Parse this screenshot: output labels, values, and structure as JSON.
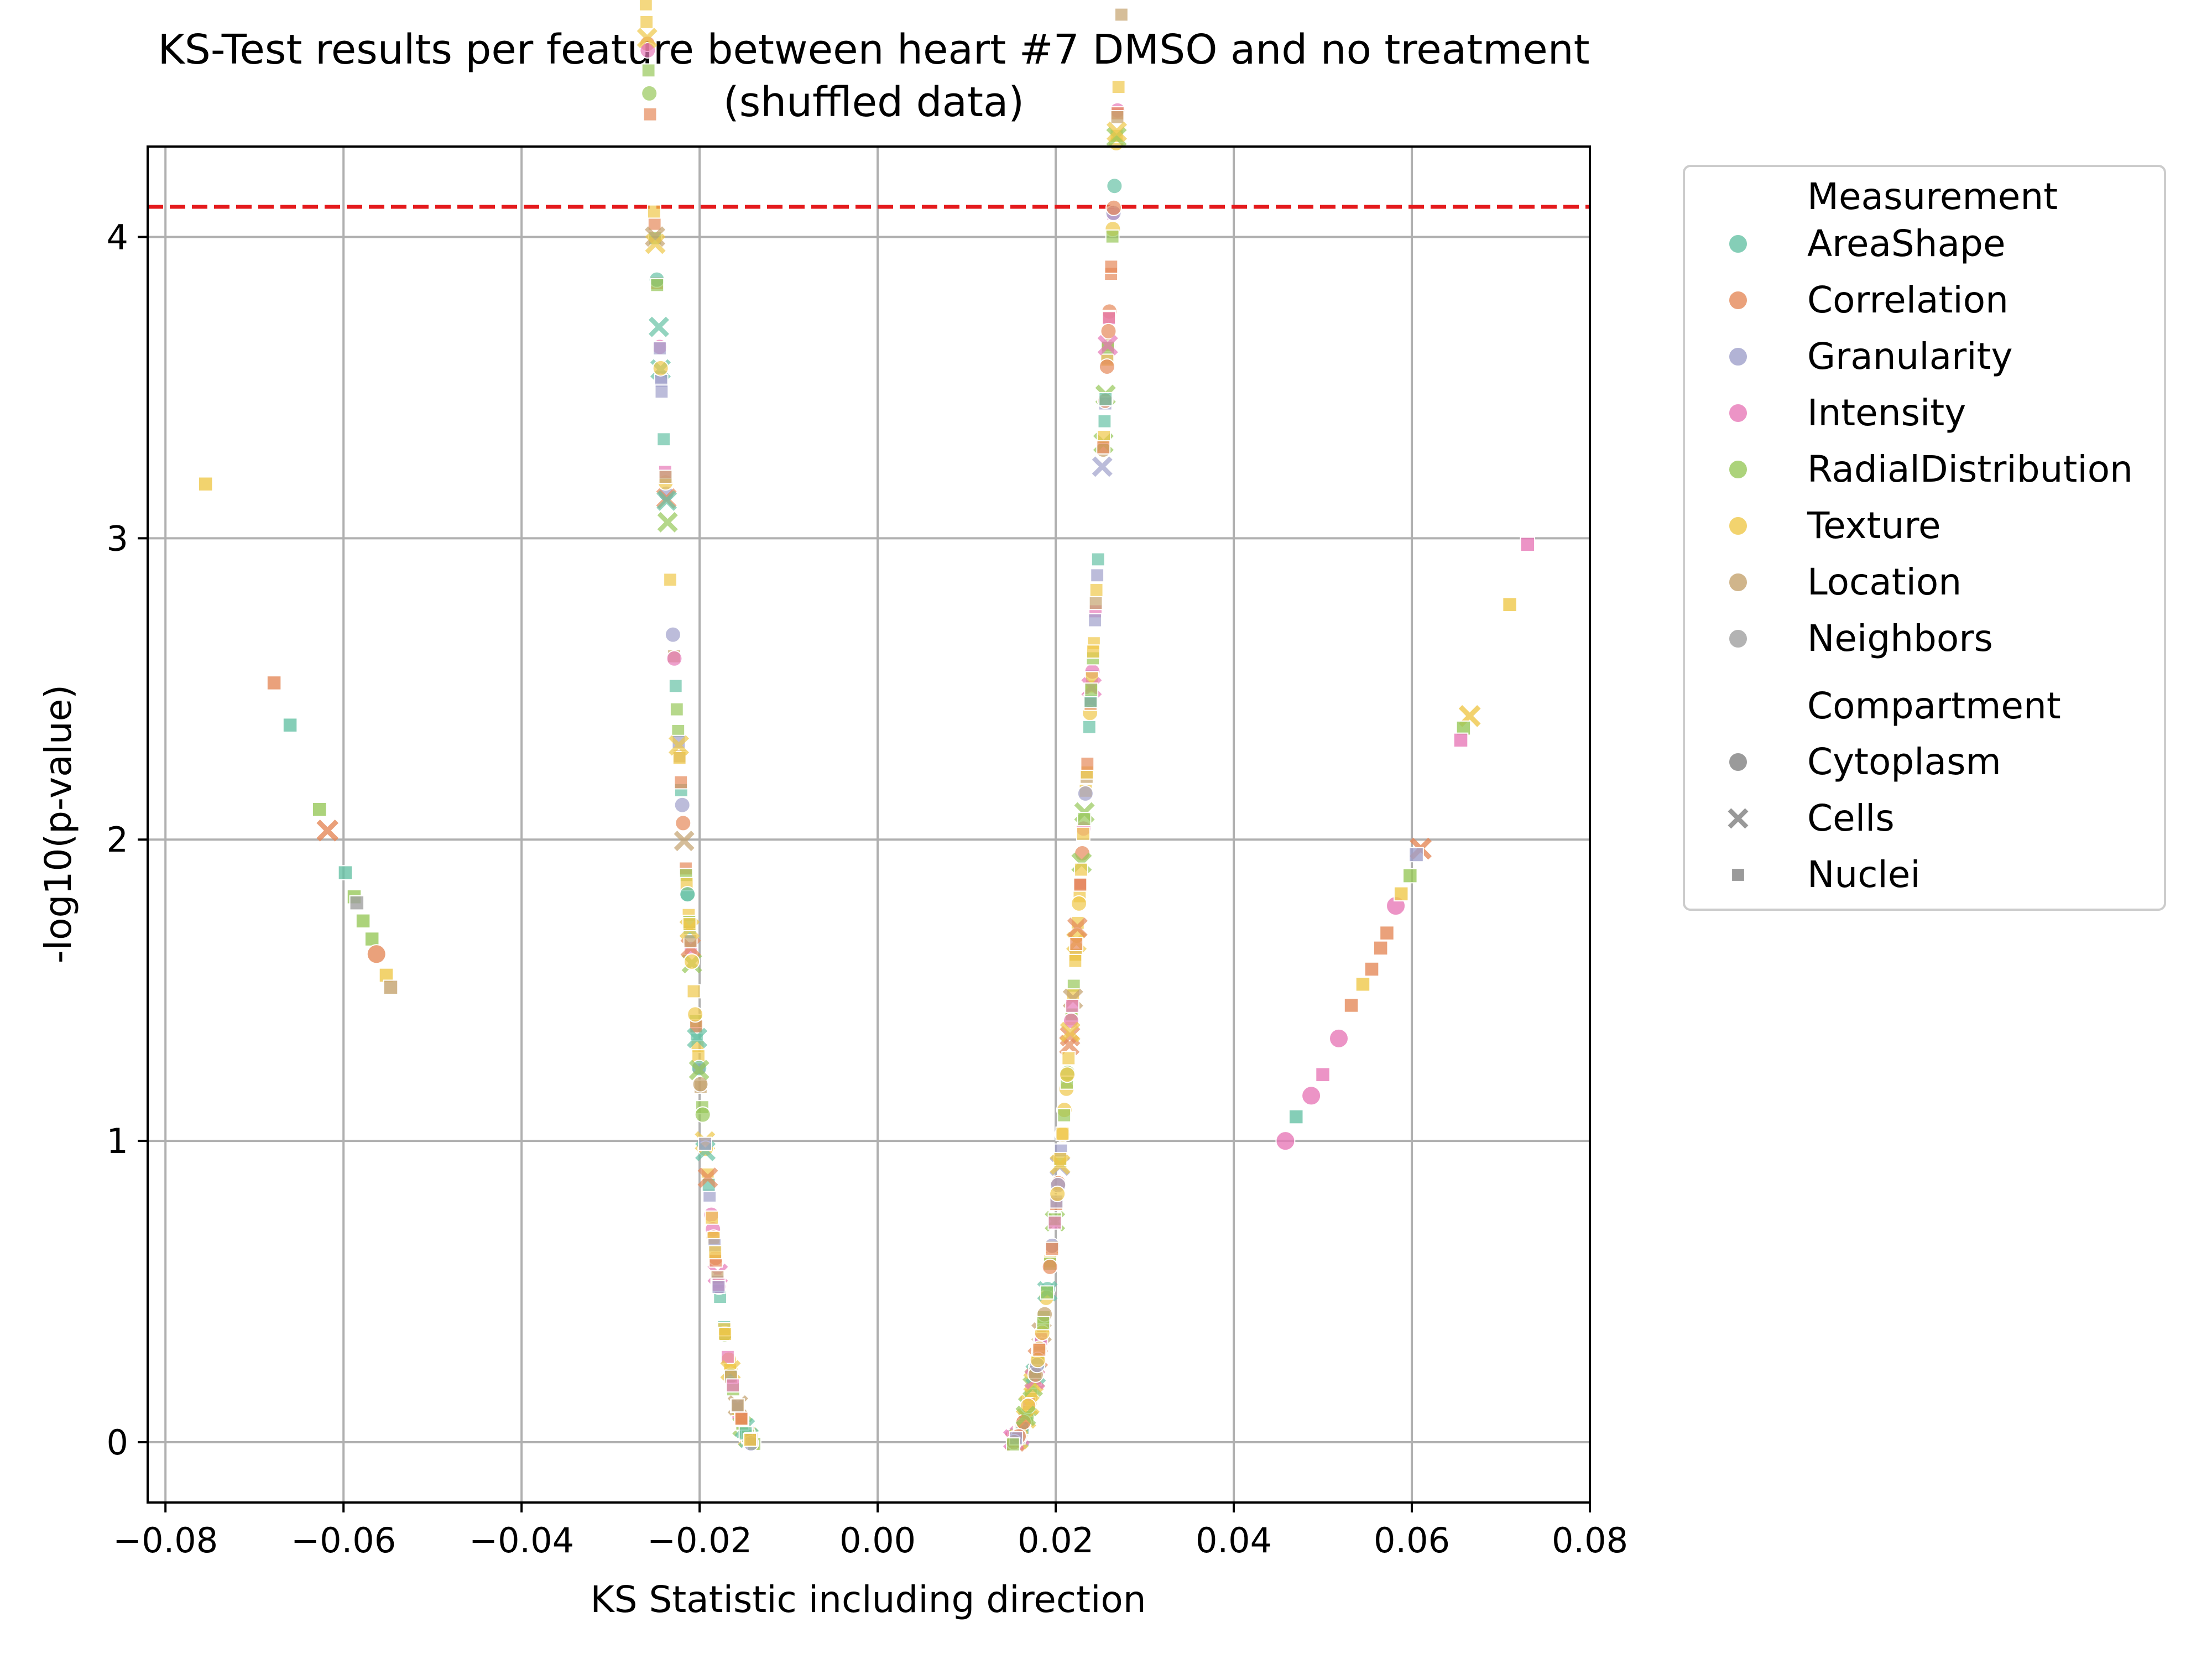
{
  "chart_data": {
    "type": "scatter",
    "title_line1": "KS-Test results per feature between heart #7 DMSO and no treatment",
    "title_line2": "(shuffled data)",
    "xlabel": "KS Statistic including direction",
    "ylabel": "-log10(p-value)",
    "xlim": [
      -0.082,
      0.08
    ],
    "ylim": [
      -0.2,
      4.3
    ],
    "xticks": [
      -0.08,
      -0.06,
      -0.04,
      -0.02,
      0.0,
      0.02,
      0.04,
      0.06,
      0.08
    ],
    "xtick_labels": [
      "−0.08",
      "−0.06",
      "−0.04",
      "−0.02",
      "0.00",
      "0.02",
      "0.04",
      "0.06",
      "0.08"
    ],
    "yticks": [
      0,
      1,
      2,
      3,
      4
    ],
    "ytick_labels": [
      "0",
      "1",
      "2",
      "3",
      "4"
    ],
    "grid": true,
    "threshold_line": {
      "y": 4.1,
      "color": "#e41a1c",
      "style": "dashed"
    },
    "legend": {
      "placement": "outside-right",
      "measurement_title": "Measurement",
      "compartment_title": "Compartment",
      "measurements": [
        {
          "name": "AreaShape",
          "color": "#66c2a5"
        },
        {
          "name": "Correlation",
          "color": "#e5895a"
        },
        {
          "name": "Granularity",
          "color": "#9fa0cb"
        },
        {
          "name": "Intensity",
          "color": "#e779b8"
        },
        {
          "name": "RadialDistribution",
          "color": "#97c85a"
        },
        {
          "name": "Texture",
          "color": "#efc84a"
        },
        {
          "name": "Location",
          "color": "#c4a26e"
        },
        {
          "name": "Neighbors",
          "color": "#a0a0a0"
        }
      ],
      "compartments": [
        {
          "name": "Cytoplasm",
          "marker": "circle"
        },
        {
          "name": "Cells",
          "marker": "x"
        },
        {
          "name": "Nuclei",
          "marker": "square"
        }
      ]
    },
    "curve_points": {
      "note_fields": [
        "x",
        "y",
        "measurement",
        "compartment"
      ],
      "values": [
        [
          -0.0755,
          3.18,
          "Texture",
          "Nuclei"
        ],
        [
          -0.0678,
          2.52,
          "Correlation",
          "Nuclei"
        ],
        [
          -0.066,
          2.38,
          "AreaShape",
          "Nuclei"
        ],
        [
          -0.0627,
          2.1,
          "RadialDistribution",
          "Nuclei"
        ],
        [
          -0.0618,
          2.03,
          "Correlation",
          "Cells"
        ],
        [
          -0.0598,
          1.89,
          "AreaShape",
          "Nuclei"
        ],
        [
          -0.0588,
          1.81,
          "RadialDistribution",
          "Nuclei"
        ],
        [
          -0.0585,
          1.79,
          "Neighbors",
          "Nuclei"
        ],
        [
          -0.0578,
          1.73,
          "RadialDistribution",
          "Nuclei"
        ],
        [
          -0.0568,
          1.67,
          "RadialDistribution",
          "Nuclei"
        ],
        [
          -0.0563,
          1.62,
          "Correlation",
          "Cytoplasm"
        ],
        [
          -0.0552,
          1.55,
          "Texture",
          "Nuclei"
        ],
        [
          -0.0547,
          1.51,
          "Location",
          "Nuclei"
        ],
        [
          0.073,
          2.98,
          "Intensity",
          "Nuclei"
        ],
        [
          0.071,
          2.78,
          "Texture",
          "Nuclei"
        ],
        [
          0.0665,
          2.41,
          "Texture",
          "Cells"
        ],
        [
          0.0658,
          2.37,
          "RadialDistribution",
          "Nuclei"
        ],
        [
          0.0655,
          2.33,
          "Intensity",
          "Nuclei"
        ],
        [
          0.061,
          1.97,
          "Correlation",
          "Cells"
        ],
        [
          0.0605,
          1.95,
          "Granularity",
          "Nuclei"
        ],
        [
          0.0598,
          1.88,
          "RadialDistribution",
          "Nuclei"
        ],
        [
          0.0582,
          1.78,
          "Intensity",
          "Cytoplasm"
        ],
        [
          0.0588,
          1.82,
          "Texture",
          "Nuclei"
        ],
        [
          0.0572,
          1.69,
          "Correlation",
          "Nuclei"
        ],
        [
          0.0565,
          1.64,
          "Correlation",
          "Nuclei"
        ],
        [
          0.0555,
          1.57,
          "Correlation",
          "Nuclei"
        ],
        [
          0.0545,
          1.52,
          "Texture",
          "Nuclei"
        ],
        [
          0.0532,
          1.45,
          "Correlation",
          "Nuclei"
        ],
        [
          0.0518,
          1.34,
          "Intensity",
          "Cytoplasm"
        ],
        [
          0.05,
          1.22,
          "Intensity",
          "Nuclei"
        ],
        [
          0.0487,
          1.15,
          "Intensity",
          "Cytoplasm"
        ],
        [
          0.047,
          1.08,
          "AreaShape",
          "Nuclei"
        ],
        [
          0.0458,
          1.0,
          "Intensity",
          "Cytoplasm"
        ]
      ]
    },
    "series_notes": "Dense U-shaped band of several hundred features; left branch from x=-0.055 to -0.014, right branch from x=0.015 to 0.047; y follows the KS p-value curve"
  }
}
